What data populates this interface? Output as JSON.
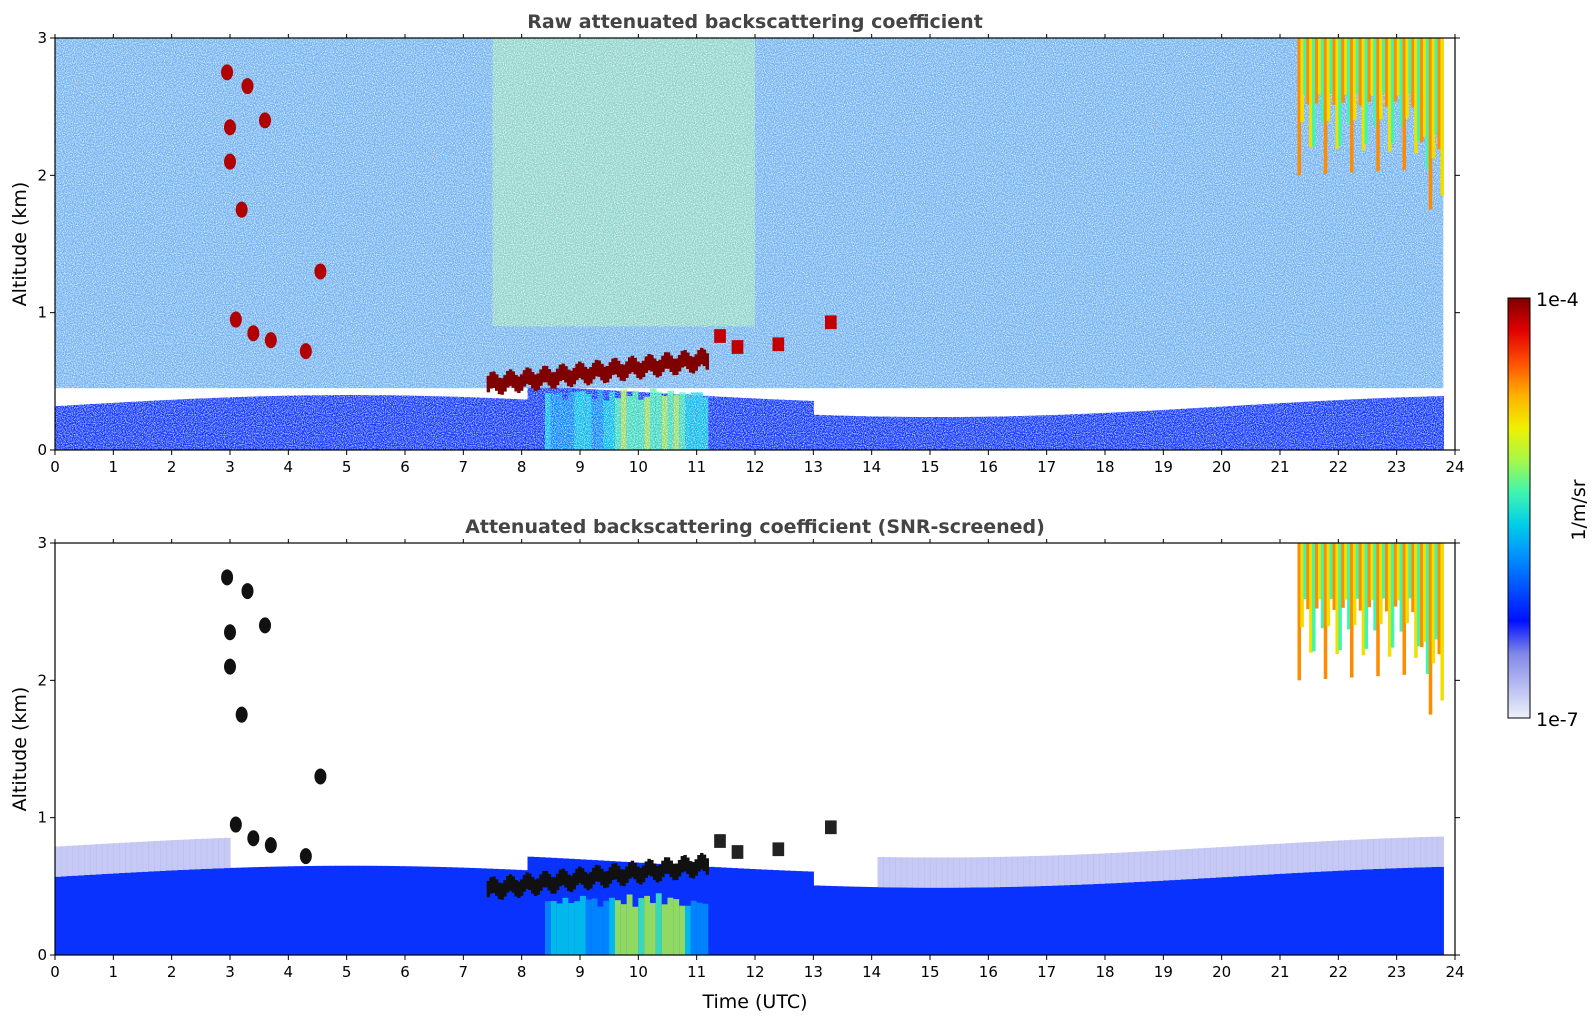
{
  "chart_data": [
    {
      "type": "heatmap",
      "title": "Raw attenuated backscattering coefficient",
      "xlabel": "",
      "ylabel": "Altitude (km)",
      "xlim": [
        0,
        24
      ],
      "ylim": [
        0,
        3
      ],
      "xticks": [
        "0",
        "1",
        "2",
        "3",
        "4",
        "5",
        "6",
        "7",
        "8",
        "9",
        "10",
        "11",
        "12",
        "13",
        "14",
        "15",
        "16",
        "17",
        "18",
        "19",
        "20",
        "21",
        "22",
        "23",
        "24"
      ],
      "yticks": [
        "0",
        "1",
        "2",
        "3"
      ],
      "data_extent_x": [
        0,
        23.8
      ],
      "features": [
        {
          "feature": "noisy background above boundary layer",
          "x": [
            0,
            23.8
          ],
          "y": [
            0.6,
            3.0
          ]
        },
        {
          "feature": "boundary layer aerosol",
          "x": [
            0,
            23.8
          ],
          "y": [
            0,
            0.45
          ]
        },
        {
          "feature": "cloud layer",
          "x": [
            7.4,
            11.2
          ],
          "y": [
            0.4,
            0.72
          ]
        },
        {
          "feature": "strong scatterers",
          "x": [
            2.9,
            4.6
          ],
          "y": [
            0.65,
            2.8
          ]
        },
        {
          "feature": "high cloud / precipitation",
          "x": [
            21.3,
            23.8
          ],
          "y": [
            1.7,
            3.0
          ]
        }
      ]
    },
    {
      "type": "heatmap",
      "title": "Attenuated backscattering coefficient (SNR-screened)",
      "xlabel": "Time (UTC)",
      "ylabel": "Altitude (km)",
      "xlim": [
        0,
        24
      ],
      "ylim": [
        0,
        3
      ],
      "xticks": [
        "0",
        "1",
        "2",
        "3",
        "4",
        "5",
        "6",
        "7",
        "8",
        "9",
        "10",
        "11",
        "12",
        "13",
        "14",
        "15",
        "16",
        "17",
        "18",
        "19",
        "20",
        "21",
        "22",
        "23",
        "24"
      ],
      "yticks": [
        "0",
        "1",
        "2",
        "3"
      ],
      "data_extent_x": [
        0,
        23.8
      ],
      "features": [
        {
          "feature": "boundary layer aerosol",
          "x": [
            0,
            23.8
          ],
          "y": [
            0,
            0.8
          ]
        },
        {
          "feature": "cloud layer",
          "x": [
            7.4,
            11.2
          ],
          "y": [
            0.4,
            0.72
          ]
        },
        {
          "feature": "strong scatterers",
          "x": [
            2.9,
            4.6
          ],
          "y": [
            0.65,
            2.8
          ]
        },
        {
          "feature": "high cloud / precipitation",
          "x": [
            21.3,
            23.8
          ],
          "y": [
            1.7,
            3.0
          ]
        }
      ]
    }
  ],
  "colorbar": {
    "label": "1/m/sr",
    "max_label": "1e-4",
    "min_label": "1e-7",
    "colormap": [
      "#eef0fb",
      "#b7bcf0",
      "#7f86e8",
      "#0010ff",
      "#0050ff",
      "#0090ff",
      "#00cfe8",
      "#40f5b0",
      "#a8f848",
      "#f0f000",
      "#ffb000",
      "#ff5000",
      "#e00000",
      "#800000"
    ]
  }
}
